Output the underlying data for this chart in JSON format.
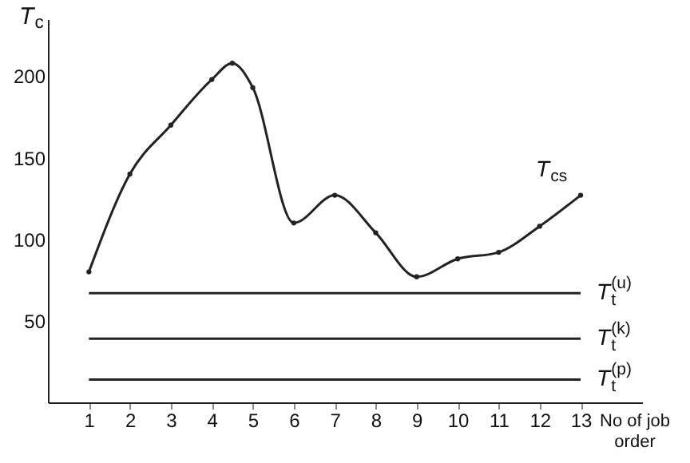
{
  "chart_data": {
    "type": "line",
    "xlabel": "No of job order",
    "ylabel": "T$_{c}$",
    "series": [
      {
        "name": "T$_{cs}$",
        "color": "#222222",
        "x": [
          1,
          2,
          3,
          4,
          4.5,
          5,
          6,
          7,
          8,
          9,
          10,
          11,
          12,
          13
        ],
        "values": [
          80,
          140,
          170,
          198,
          208,
          193,
          110,
          127,
          104,
          77,
          88,
          92,
          108,
          127
        ]
      }
    ],
    "xlim": [
      0,
      14.5
    ],
    "xticks": [
      1,
      2,
      3,
      4,
      5,
      6,
      7,
      8,
      9,
      10,
      11,
      12,
      13
    ],
    "ylim": [
      0,
      235
    ],
    "yticks": [
      50,
      100,
      150,
      200
    ],
    "ref_lines": [
      {
        "axis": "y",
        "value": 67,
        "label": "T$_{t}$$^{(u)}$",
        "color": "#222222"
      },
      {
        "axis": "y",
        "value": 39,
        "label": "T$_{t}$$^{(k)}$",
        "color": "#222222"
      },
      {
        "axis": "y",
        "value": 14,
        "label": "T$_{t}$$^{(p)}$",
        "color": "#222222"
      }
    ],
    "grid": false,
    "marker": "circle",
    "line_style": "solid"
  }
}
